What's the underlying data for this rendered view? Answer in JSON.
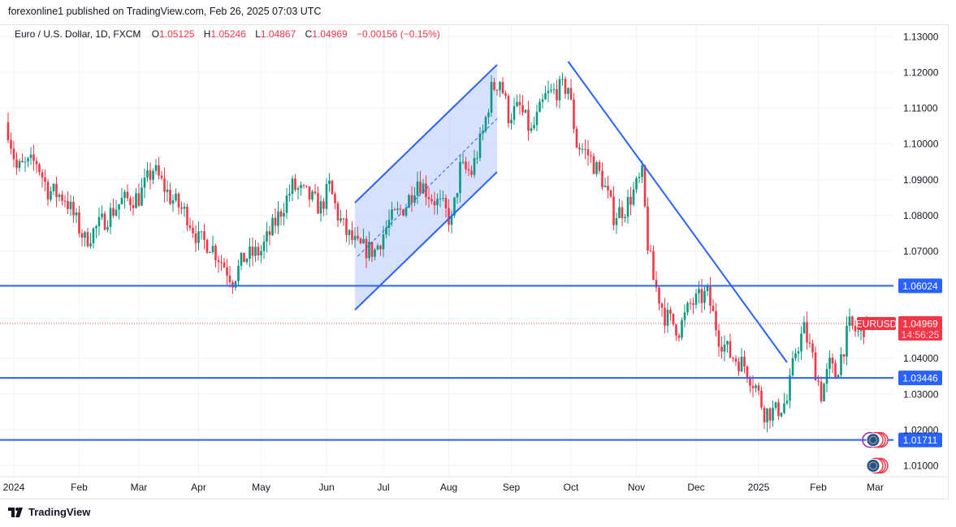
{
  "header": {
    "published": "forexonline1 published on TradingView.com, Feb 26, 2025 07:03 UTC"
  },
  "legend": {
    "symbol": "Euro / U.S. Dollar, 1D, FXCM",
    "o_label": "O",
    "o": "1.05125",
    "h_label": "H",
    "h": "1.05246",
    "l_label": "L",
    "l": "1.04867",
    "c_label": "C",
    "c": "1.04969",
    "change": "−0.00156 (−0.15%)"
  },
  "footer": {
    "brand": "TradingView"
  },
  "colors": {
    "up": "#089981",
    "down": "#f23645",
    "drawing": "#2962ff",
    "channel_fill": "#c9d6fb"
  },
  "chart_data": {
    "type": "candlestick",
    "symbol_tag": "EURUSD",
    "last_price": "1.04969",
    "countdown": "14:56:25",
    "ylim": [
      1.0,
      1.135
    ],
    "y_ticks": [
      "1.13000",
      "1.12000",
      "1.11000",
      "1.10000",
      "1.09000",
      "1.08000",
      "1.07000",
      "1.04000",
      "1.03000",
      "1.02000",
      "1.01000"
    ],
    "x_ticks": [
      {
        "label": "2024",
        "d": 2
      },
      {
        "label": "Feb",
        "d": 25
      },
      {
        "label": "Mar",
        "d": 46
      },
      {
        "label": "Apr",
        "d": 67
      },
      {
        "label": "May",
        "d": 89
      },
      {
        "label": "Jun",
        "d": 112
      },
      {
        "label": "Jul",
        "d": 132
      },
      {
        "label": "Aug",
        "d": 155
      },
      {
        "label": "Sep",
        "d": 177
      },
      {
        "label": "Oct",
        "d": 198
      },
      {
        "label": "Nov",
        "d": 221
      },
      {
        "label": "Dec",
        "d": 242
      },
      {
        "label": "2025",
        "d": 264
      },
      {
        "label": "Feb",
        "d": 285
      },
      {
        "label": "Mar",
        "d": 305
      }
    ],
    "close_waypoints": [
      [
        0,
        1.104
      ],
      [
        3,
        1.093
      ],
      [
        10,
        1.095
      ],
      [
        14,
        1.087
      ],
      [
        20,
        1.085
      ],
      [
        27,
        1.073
      ],
      [
        33,
        1.078
      ],
      [
        40,
        1.084
      ],
      [
        46,
        1.085
      ],
      [
        51,
        1.093
      ],
      [
        57,
        1.085
      ],
      [
        63,
        1.08
      ],
      [
        67,
        1.073
      ],
      [
        71,
        1.072
      ],
      [
        76,
        1.066
      ],
      [
        79,
        1.062
      ],
      [
        83,
        1.068
      ],
      [
        89,
        1.07
      ],
      [
        94,
        1.078
      ],
      [
        100,
        1.088
      ],
      [
        106,
        1.085
      ],
      [
        110,
        1.082
      ],
      [
        113,
        1.088
      ],
      [
        116,
        1.08
      ],
      [
        119,
        1.075
      ],
      [
        123,
        1.071
      ],
      [
        129,
        1.07
      ],
      [
        134,
        1.078
      ],
      [
        140,
        1.083
      ],
      [
        144,
        1.09
      ],
      [
        149,
        1.085
      ],
      [
        153,
        1.082
      ],
      [
        156,
        1.078
      ],
      [
        159,
        1.093
      ],
      [
        163,
        1.092
      ],
      [
        167,
        1.103
      ],
      [
        170,
        1.115
      ],
      [
        173,
        1.118
      ],
      [
        176,
        1.108
      ],
      [
        180,
        1.11
      ],
      [
        184,
        1.103
      ],
      [
        189,
        1.113
      ],
      [
        193,
        1.115
      ],
      [
        197,
        1.116
      ],
      [
        200,
        1.1
      ],
      [
        204,
        1.097
      ],
      [
        209,
        1.09
      ],
      [
        213,
        1.08
      ],
      [
        217,
        1.082
      ],
      [
        223,
        1.091
      ],
      [
        225,
        1.072
      ],
      [
        227,
        1.062
      ],
      [
        231,
        1.052
      ],
      [
        236,
        1.048
      ],
      [
        240,
        1.055
      ],
      [
        246,
        1.058
      ],
      [
        250,
        1.046
      ],
      [
        254,
        1.041
      ],
      [
        259,
        1.038
      ],
      [
        263,
        1.032
      ],
      [
        266,
        1.025
      ],
      [
        270,
        1.025
      ],
      [
        274,
        1.028
      ],
      [
        277,
        1.042
      ],
      [
        280,
        1.048
      ],
      [
        283,
        1.04
      ],
      [
        286,
        1.03
      ],
      [
        289,
        1.038
      ],
      [
        291,
        1.035
      ],
      [
        296,
        1.049
      ],
      [
        299,
        1.047
      ],
      [
        302,
        1.0497
      ]
    ],
    "horizontal_levels": [
      "1.06024",
      "1.03446",
      "1.01711"
    ],
    "channel": {
      "upper": [
        [
          122,
          1.0835
        ],
        [
          172,
          1.1221
        ]
      ],
      "lower": [
        [
          122,
          1.0535
        ],
        [
          172,
          1.0921
        ]
      ],
      "mid": [
        [
          123,
          1.0685
        ],
        [
          172,
          1.107
        ]
      ]
    },
    "trendline": [
      [
        197,
        1.123
      ],
      [
        274,
        1.0388
      ]
    ]
  }
}
